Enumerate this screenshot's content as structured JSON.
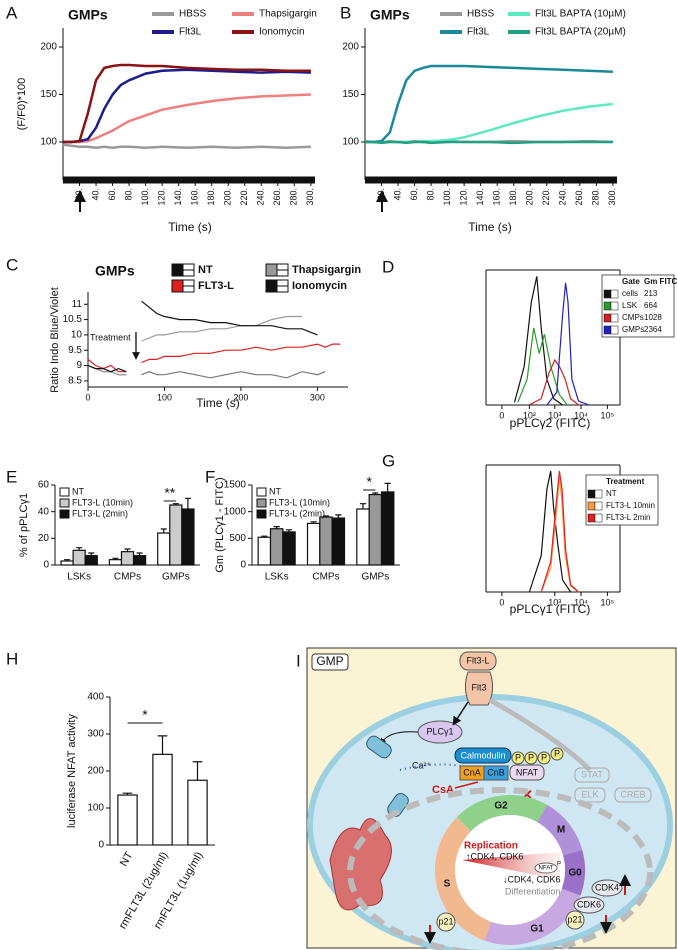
{
  "chart_data": [
    {
      "panel": "A",
      "type": "line",
      "title": "GMPs",
      "y_label": "(F/F0)*100",
      "x_label": "Time (s)",
      "x": [
        0,
        10,
        20,
        30,
        40,
        50,
        60,
        70,
        80,
        100,
        120,
        150,
        180,
        210,
        240,
        270,
        300
      ],
      "series": [
        {
          "name": "HBSS",
          "color": "#9a9a9a",
          "values": [
            97,
            96,
            95,
            95,
            94,
            95,
            94,
            95,
            95,
            94,
            95,
            94,
            95,
            94,
            95,
            94,
            95
          ]
        },
        {
          "name": "Thapsigargin",
          "color": "#f08080",
          "values": [
            100,
            100,
            100,
            101,
            104,
            108,
            112,
            117,
            122,
            128,
            134,
            139,
            143,
            146,
            148,
            149,
            150
          ]
        },
        {
          "name": "Flt3L",
          "color": "#1c1c8e",
          "values": [
            100,
            100,
            101,
            103,
            115,
            135,
            150,
            160,
            165,
            172,
            175,
            176,
            175,
            174,
            173,
            174,
            173
          ]
        },
        {
          "name": "Ionomycin",
          "color": "#8b1212",
          "values": [
            100,
            100,
            101,
            130,
            165,
            178,
            180,
            181,
            181,
            180,
            180,
            178,
            177,
            176,
            176,
            175,
            175
          ]
        }
      ],
      "xlim": [
        0,
        305
      ],
      "ylim": [
        60,
        220
      ],
      "xticks": [
        {
          "value": 20,
          "label": "20."
        },
        {
          "value": 40,
          "label": "40."
        },
        {
          "value": 60,
          "label": "60."
        },
        {
          "value": 80,
          "label": "80."
        },
        {
          "value": 100,
          "label": "100."
        },
        {
          "value": 120,
          "label": "120."
        },
        {
          "value": 140,
          "label": "140."
        },
        {
          "value": 160,
          "label": "160."
        },
        {
          "value": 180,
          "label": "180."
        },
        {
          "value": 200,
          "label": "200."
        },
        {
          "value": 220,
          "label": "220."
        },
        {
          "value": 240,
          "label": "240."
        },
        {
          "value": 260,
          "label": "260."
        },
        {
          "value": 280,
          "label": "280."
        },
        {
          "value": 300,
          "label": "300."
        }
      ],
      "yticks": [
        100,
        150,
        200
      ]
    },
    {
      "panel": "B",
      "type": "line",
      "title": "GMPs",
      "x_label": "Time (s)",
      "x": [
        0,
        10,
        20,
        30,
        40,
        50,
        60,
        70,
        80,
        100,
        120,
        150,
        180,
        210,
        240,
        270,
        300
      ],
      "series": [
        {
          "name": "HBSS",
          "color": "#9a9a9a",
          "values": [
            101,
            100,
            100,
            101,
            100,
            100,
            101,
            100,
            100,
            101,
            100,
            100,
            101,
            100,
            100,
            101,
            100
          ]
        },
        {
          "name": "Flt3L BAPTA (10µM)",
          "color": "#5ee8c0",
          "values": [
            100,
            100,
            100,
            100,
            100,
            100,
            100,
            101,
            101,
            102,
            105,
            112,
            120,
            127,
            133,
            137,
            140
          ]
        },
        {
          "name": "Flt3L",
          "color": "#1a8a9a",
          "values": [
            100,
            100,
            101,
            110,
            140,
            165,
            175,
            178,
            180,
            180,
            180,
            179,
            178,
            177,
            176,
            175,
            174
          ]
        },
        {
          "name": "Flt3L BAPTA (20µM)",
          "color": "#1fa080",
          "values": [
            100,
            100,
            99,
            100,
            100,
            99,
            100,
            100,
            99,
            100,
            100,
            100,
            99,
            100,
            100,
            100,
            100
          ]
        }
      ],
      "xlim": [
        0,
        305
      ],
      "ylim": [
        60,
        220
      ],
      "xticks": [
        {
          "value": 20,
          "label": "20."
        },
        {
          "value": 40,
          "label": "40."
        },
        {
          "value": 60,
          "label": "60."
        },
        {
          "value": 80,
          "label": "80."
        },
        {
          "value": 100,
          "label": "100."
        },
        {
          "value": 120,
          "label": "120."
        },
        {
          "value": 140,
          "label": "140."
        },
        {
          "value": 160,
          "label": "160."
        },
        {
          "value": 180,
          "label": "180."
        },
        {
          "value": 200,
          "label": "200."
        },
        {
          "value": 220,
          "label": "220."
        },
        {
          "value": 240,
          "label": "240."
        },
        {
          "value": 260,
          "label": "260."
        },
        {
          "value": 280,
          "label": "280."
        },
        {
          "value": 300,
          "label": "300."
        }
      ],
      "yticks": [
        100,
        150,
        200
      ]
    },
    {
      "panel": "C",
      "type": "line",
      "title": "GMPs",
      "y_label": "Ratio Indo Blue/Violet",
      "x_label": "Time (s)",
      "annotation": "Treatment",
      "x": [
        0,
        10,
        20,
        30,
        40,
        50,
        60,
        70,
        80,
        90,
        100,
        120,
        140,
        160,
        180,
        200,
        220,
        240,
        260,
        280,
        300,
        310,
        320,
        330
      ],
      "series": [
        {
          "name": "NT",
          "color": "#111111",
          "line_color": "#777777",
          "values": [
            9.0,
            8.9,
            8.8,
            8.8,
            8.7,
            8.7,
            null,
            8.7,
            8.8,
            8.7,
            8.7,
            8.8,
            8.7,
            8.6,
            8.7,
            8.8,
            8.7,
            8.7,
            8.6,
            8.8,
            8.7,
            8.8,
            null,
            null
          ]
        },
        {
          "name": "Thapsigargin",
          "color": "#999999",
          "values": [
            9.0,
            8.9,
            8.8,
            8.8,
            8.7,
            8.7,
            null,
            9.8,
            9.9,
            10.0,
            10.0,
            10.1,
            10.1,
            10.2,
            10.2,
            10.3,
            10.3,
            10.5,
            10.6,
            10.6,
            null,
            null,
            null,
            null
          ]
        },
        {
          "name": "FLT3-L",
          "color": "#e02020",
          "values": [
            9.2,
            9.0,
            8.9,
            9.0,
            8.8,
            8.8,
            null,
            9.1,
            9.2,
            9.2,
            9.3,
            9.3,
            9.4,
            9.4,
            9.5,
            9.5,
            9.6,
            9.5,
            9.6,
            9.6,
            9.7,
            9.6,
            9.7,
            9.7
          ]
        },
        {
          "name": "Ionomycin",
          "color": "#111111",
          "values": [
            9.0,
            8.9,
            8.9,
            8.8,
            8.9,
            8.8,
            null,
            11.1,
            10.9,
            10.7,
            10.6,
            10.5,
            10.5,
            10.4,
            10.4,
            10.3,
            10.3,
            10.3,
            10.2,
            10.2,
            10.0,
            null,
            null,
            null
          ]
        }
      ],
      "xlim": [
        0,
        340
      ],
      "ylim": [
        8.3,
        11.4
      ],
      "xticks": [
        0,
        100,
        200,
        300
      ],
      "yticks": [
        8.5,
        9,
        9.5,
        10,
        10.5,
        11
      ]
    },
    {
      "panel": "D",
      "type": "histogram",
      "x_label": "pPLCγ2 (FITC)",
      "xscale": "logicle",
      "legend_headers": [
        "Gate",
        "Gm FITC"
      ],
      "series": [
        {
          "name": "cells",
          "color": "#111111",
          "gm": 213,
          "x": [
            20,
            60,
            120,
            200,
            300,
            500,
            900,
            2000
          ],
          "values": [
            2,
            30,
            80,
            100,
            60,
            20,
            5,
            0
          ]
        },
        {
          "name": "LSK",
          "color": "#2a9a2a",
          "gm": 664,
          "x": [
            30,
            80,
            150,
            250,
            400,
            700,
            1500,
            3000
          ],
          "values": [
            2,
            20,
            60,
            40,
            55,
            30,
            8,
            0
          ]
        },
        {
          "name": "CMPs",
          "color": "#d02020",
          "gm": 1028,
          "x": [
            100,
            300,
            600,
            1000,
            1500,
            2500,
            4000,
            8000
          ],
          "values": [
            0,
            5,
            25,
            35,
            30,
            20,
            5,
            0
          ]
        },
        {
          "name": "GMPs",
          "color": "#2020c0",
          "gm": 2364,
          "x": [
            500,
            1200,
            2000,
            2600,
            3200,
            4500,
            8000,
            20000
          ],
          "values": [
            0,
            10,
            70,
            95,
            80,
            20,
            3,
            0
          ]
        }
      ],
      "xlim": [
        -30,
        300000
      ],
      "ylim": [
        0,
        105
      ],
      "xticks": [
        0,
        {
          "value": 100,
          "label": "10²"
        },
        {
          "value": 1000,
          "label": "10³"
        },
        {
          "value": 10000,
          "label": "10⁴"
        },
        {
          "value": 100000,
          "label": "10⁵"
        }
      ]
    },
    {
      "panel": "E",
      "type": "bar",
      "y_label": "% of pPLCγ1",
      "categories": [
        "LSKs",
        "CMPs",
        "GMPs"
      ],
      "annotation": "**",
      "series": [
        {
          "name": "NT",
          "color": "#ffffff",
          "values": [
            3,
            4,
            24
          ],
          "errors": [
            1,
            1,
            3
          ]
        },
        {
          "name": "FLT3-L (10min)",
          "color": "#cccccc",
          "values": [
            11,
            10,
            45
          ],
          "errors": [
            2,
            2,
            1
          ]
        },
        {
          "name": "FLT3-L (2min)",
          "color": "#111111",
          "values": [
            7,
            7,
            42
          ],
          "errors": [
            2,
            2,
            8
          ]
        }
      ],
      "ylim": [
        0,
        60
      ],
      "yticks": [
        0,
        20,
        40,
        60
      ]
    },
    {
      "panel": "F",
      "type": "bar",
      "y_label": "Gm (PLCγ1 - FITC)",
      "categories": [
        "LSKs",
        "CMPs",
        "GMPs"
      ],
      "annotation": "*",
      "series": [
        {
          "name": "NT",
          "color": "#ffffff",
          "values": [
            520,
            780,
            1050
          ],
          "errors": [
            20,
            30,
            100
          ]
        },
        {
          "name": "FLT3-L (10min)",
          "color": "#999999",
          "values": [
            680,
            900,
            1320
          ],
          "errors": [
            40,
            20,
            30
          ]
        },
        {
          "name": "FLT3-L (2min)",
          "color": "#111111",
          "values": [
            620,
            880,
            1370
          ],
          "errors": [
            40,
            60,
            160
          ]
        }
      ],
      "ylim": [
        0,
        1500
      ],
      "yticks": [
        0,
        500,
        1000,
        1500
      ]
    },
    {
      "panel": "G",
      "type": "histogram",
      "x_label": "pPLCγ1 (FITC)",
      "xscale": "logicle",
      "legend_title": "Treatment",
      "series": [
        {
          "name": "NT",
          "color": "#111111",
          "x": [
            100,
            300,
            500,
            700,
            900,
            1300,
            2000,
            4000
          ],
          "values": [
            0,
            30,
            85,
            100,
            70,
            40,
            10,
            0
          ]
        },
        {
          "name": "FLT3-L 10min",
          "color": "#f59a40",
          "x": [
            300,
            700,
            1100,
            1500,
            1800,
            2500,
            4000,
            8000
          ],
          "values": [
            0,
            20,
            60,
            95,
            80,
            30,
            5,
            0
          ]
        },
        {
          "name": "FLT3-L 2min",
          "color": "#e02020",
          "x": [
            300,
            700,
            1100,
            1500,
            1900,
            2600,
            4000,
            8000
          ],
          "values": [
            0,
            25,
            70,
            100,
            85,
            35,
            6,
            0
          ]
        }
      ],
      "xlim": [
        -30,
        300000
      ],
      "ylim": [
        0,
        105
      ],
      "xticks": [
        0,
        {
          "value": 1000,
          "label": "10³"
        },
        {
          "value": 10000,
          "label": "10⁴"
        },
        {
          "value": 100000,
          "label": "10⁵"
        }
      ]
    },
    {
      "panel": "H",
      "type": "bar",
      "y_label": "luciferase NFAT activity",
      "annotation": "*",
      "categories": [
        "NT",
        "rmFLT3L (2ug/ml)",
        "rmFLT3L (1ug/ml)"
      ],
      "color": "#ffffff",
      "values": [
        135,
        245,
        175
      ],
      "errors": [
        5,
        50,
        50
      ],
      "ylim": [
        0,
        400
      ],
      "yticks": [
        0,
        100,
        200,
        300,
        400
      ]
    }
  ],
  "diagram": {
    "panel": "I",
    "cell_type": "GMP",
    "ligand": "Flt3-L",
    "receptor": "Flt3",
    "enzyme": "PLCγ1",
    "ion": "Ca²⁺",
    "calmodulin": "Calmodulin",
    "phosphates": [
      "P",
      "P",
      "P",
      "P"
    ],
    "calcineurin": [
      "CnA",
      "CnB"
    ],
    "nfat": "NFAT",
    "inhibitor": "CsA",
    "pathways": [
      "STAT",
      "ELK",
      "CREB"
    ],
    "phases": [
      "G2",
      "M",
      "G0",
      "G1",
      "S"
    ],
    "replication": "Replication",
    "up_cdk": "↑CDK4, CDK6",
    "down_cdk": "↓CDK4, CDK6",
    "differentiation": "Differentiation",
    "nuclear_nfat": "NFAT",
    "nuclear_p": "P",
    "cdk4": "CDK4",
    "cdk6": "CDK6",
    "p21": [
      "p21",
      "p21"
    ]
  }
}
